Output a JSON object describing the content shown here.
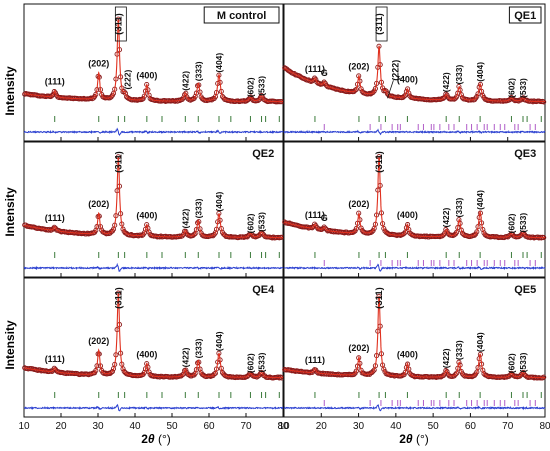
{
  "figure": {
    "ylabel": "Intensity",
    "xlabel_prefix": "2",
    "xlabel_theta": "θ",
    "xlabel_unit": " (°)"
  },
  "colors": {
    "observed": "#8b1a1a",
    "calculated": "#e0301e",
    "difference": "#2a3fd0",
    "bragg_spinel": "#3a7a3a",
    "bragg_second": "#b05cc8",
    "frame": "#111111"
  },
  "chart_data": [
    {
      "type": "line",
      "title": "M control",
      "xlim": [
        10,
        80
      ],
      "xticks": [
        10,
        20,
        30,
        40,
        50,
        60,
        70,
        80
      ],
      "tick_labels_shown": false,
      "labels_boxed": true,
      "series": [
        {
          "role": "observed",
          "marker": "circle"
        },
        {
          "role": "calculated",
          "line": "solid"
        },
        {
          "role": "difference",
          "line": "solid"
        }
      ],
      "background": 0.1,
      "peaks": [
        {
          "x": 18.3,
          "h": 0.08,
          "label": "(111)"
        },
        {
          "x": 30.2,
          "h": 0.33,
          "label": "(202)"
        },
        {
          "x": 35.5,
          "h": 1.0,
          "label": "(311)"
        },
        {
          "x": 37.2,
          "h": 0.06,
          "label": "(222)"
        },
        {
          "x": 43.2,
          "h": 0.2,
          "label": "(400)"
        },
        {
          "x": 53.6,
          "h": 0.1,
          "label": "(422)"
        },
        {
          "x": 57.1,
          "h": 0.22,
          "label": "(333)"
        },
        {
          "x": 62.7,
          "h": 0.33,
          "label": "(404)"
        },
        {
          "x": 71.2,
          "h": 0.05,
          "label": "(602)"
        },
        {
          "x": 74.2,
          "h": 0.07,
          "label": "(533)"
        }
      ],
      "bragg_rows": [
        {
          "role": "bragg_spinel",
          "x": [
            18.3,
            30.2,
            35.5,
            37.2,
            43.2,
            47.3,
            53.6,
            57.1,
            62.7,
            65.9,
            71.2,
            74.2,
            75.3,
            79.0
          ]
        }
      ]
    },
    {
      "type": "line",
      "title": "QE1",
      "xlim": [
        10,
        80
      ],
      "xticks": [
        10,
        20,
        30,
        40,
        50,
        60,
        70,
        80
      ],
      "tick_labels_shown": false,
      "labels_boxed": true,
      "series": [
        {
          "role": "observed",
          "marker": "circle"
        },
        {
          "role": "calculated",
          "line": "solid"
        },
        {
          "role": "difference",
          "line": "solid"
        }
      ],
      "background": 0.42,
      "peaks": [
        {
          "x": 18.3,
          "h": 0.06,
          "label": "(111)"
        },
        {
          "x": 20.8,
          "h": 0.05,
          "label": "G"
        },
        {
          "x": 30.1,
          "h": 0.22,
          "label": "(202)"
        },
        {
          "x": 35.5,
          "h": 0.62,
          "label": "(311)"
        },
        {
          "x": 37.2,
          "h": 0.05,
          "label": "(222)",
          "arrow": true
        },
        {
          "x": 43.1,
          "h": 0.12,
          "label": "(400)"
        },
        {
          "x": 53.5,
          "h": 0.07,
          "label": "(422)"
        },
        {
          "x": 57.0,
          "h": 0.17,
          "label": "(333)"
        },
        {
          "x": 62.6,
          "h": 0.21,
          "label": "(404)"
        },
        {
          "x": 71.0,
          "h": 0.04,
          "label": "(602)"
        },
        {
          "x": 74.1,
          "h": 0.04,
          "label": "(533)"
        }
      ],
      "bragg_rows": [
        {
          "role": "bragg_spinel",
          "x": [
            18.3,
            30.1,
            35.5,
            37.2,
            43.1,
            53.5,
            57.0,
            62.6,
            71.0,
            74.1,
            75.2,
            79.0
          ]
        },
        {
          "role": "bragg_second",
          "x": [
            20.8,
            33.1,
            36.0,
            39.0,
            40.5,
            41.2,
            46.0,
            47.4,
            49.5,
            50.2,
            51.8,
            54.2,
            55.6,
            59.0,
            60.3,
            61.8,
            63.7,
            64.5,
            66.4,
            68.0,
            69.2,
            71.9,
            72.8,
            76.0,
            77.4
          ]
        }
      ]
    },
    {
      "type": "line",
      "title": "QE2",
      "xlim": [
        10,
        80
      ],
      "xticks": [
        10,
        20,
        30,
        40,
        50,
        60,
        70,
        80
      ],
      "tick_labels_shown": false,
      "labels_boxed": false,
      "series": [
        {
          "role": "observed",
          "marker": "circle"
        },
        {
          "role": "calculated",
          "line": "solid"
        },
        {
          "role": "difference",
          "line": "solid"
        }
      ],
      "background": 0.16,
      "peaks": [
        {
          "x": 18.3,
          "h": 0.05,
          "label": "(111)"
        },
        {
          "x": 30.2,
          "h": 0.27,
          "label": "(202)"
        },
        {
          "x": 35.5,
          "h": 1.0,
          "label": "(311)"
        },
        {
          "x": 43.2,
          "h": 0.15,
          "label": "(400)"
        },
        {
          "x": 53.6,
          "h": 0.08,
          "label": "(422)"
        },
        {
          "x": 57.1,
          "h": 0.21,
          "label": "(333)"
        },
        {
          "x": 62.7,
          "h": 0.3,
          "label": "(404)"
        },
        {
          "x": 71.2,
          "h": 0.05,
          "label": "(602)"
        },
        {
          "x": 74.2,
          "h": 0.07,
          "label": "(533)"
        }
      ],
      "bragg_rows": [
        {
          "role": "bragg_spinel",
          "x": [
            18.3,
            30.2,
            35.5,
            37.2,
            43.2,
            47.3,
            53.6,
            57.1,
            62.7,
            65.9,
            71.2,
            74.2,
            75.3,
            79.0
          ]
        }
      ]
    },
    {
      "type": "line",
      "title": "QE3",
      "xlim": [
        10,
        80
      ],
      "xticks": [
        10,
        20,
        30,
        40,
        50,
        60,
        70,
        80
      ],
      "tick_labels_shown": false,
      "labels_boxed": false,
      "series": [
        {
          "role": "observed",
          "marker": "circle"
        },
        {
          "role": "calculated",
          "line": "solid"
        },
        {
          "role": "difference",
          "line": "solid"
        }
      ],
      "background": 0.2,
      "peaks": [
        {
          "x": 18.3,
          "h": 0.06,
          "label": "(111)"
        },
        {
          "x": 20.8,
          "h": 0.04,
          "label": "G"
        },
        {
          "x": 30.1,
          "h": 0.26,
          "label": "(202)"
        },
        {
          "x": 35.5,
          "h": 1.0,
          "label": "(311)"
        },
        {
          "x": 43.1,
          "h": 0.15,
          "label": "(400)"
        },
        {
          "x": 53.5,
          "h": 0.09,
          "label": "(422)"
        },
        {
          "x": 57.0,
          "h": 0.22,
          "label": "(333)"
        },
        {
          "x": 62.6,
          "h": 0.32,
          "label": "(404)"
        },
        {
          "x": 71.0,
          "h": 0.05,
          "label": "(602)"
        },
        {
          "x": 74.1,
          "h": 0.06,
          "label": "(533)"
        }
      ],
      "bragg_rows": [
        {
          "role": "bragg_spinel",
          "x": [
            18.3,
            30.1,
            35.5,
            37.2,
            43.1,
            53.5,
            57.0,
            62.6,
            71.0,
            74.1,
            75.2,
            79.0
          ]
        },
        {
          "role": "bragg_second",
          "x": [
            20.8,
            33.1,
            36.0,
            39.0,
            40.5,
            41.2,
            46.0,
            47.4,
            49.5,
            50.2,
            51.8,
            54.2,
            55.6,
            59.0,
            60.3,
            61.8,
            63.7,
            64.5,
            66.4,
            68.0,
            69.2,
            71.9,
            72.8,
            76.0,
            77.4
          ]
        }
      ]
    },
    {
      "type": "line",
      "title": "QE4",
      "xlim": [
        10,
        80
      ],
      "xticks": [
        10,
        20,
        30,
        40,
        50,
        60,
        70,
        80
      ],
      "tick_labels": [
        "10",
        "20",
        "30",
        "40",
        "50",
        "60",
        "70",
        "80"
      ],
      "tick_labels_shown": true,
      "labels_boxed": false,
      "series": [
        {
          "role": "observed",
          "marker": "circle"
        },
        {
          "role": "calculated",
          "line": "solid"
        },
        {
          "role": "difference",
          "line": "solid"
        }
      ],
      "background": 0.12,
      "peaks": [
        {
          "x": 18.3,
          "h": 0.05,
          "label": "(111)"
        },
        {
          "x": 30.2,
          "h": 0.3,
          "label": "(202)"
        },
        {
          "x": 35.5,
          "h": 1.0,
          "label": "(311)"
        },
        {
          "x": 43.2,
          "h": 0.16,
          "label": "(400)"
        },
        {
          "x": 53.6,
          "h": 0.09,
          "label": "(422)"
        },
        {
          "x": 57.1,
          "h": 0.2,
          "label": "(333)"
        },
        {
          "x": 62.7,
          "h": 0.29,
          "label": "(404)"
        },
        {
          "x": 71.2,
          "h": 0.05,
          "label": "(602)"
        },
        {
          "x": 74.2,
          "h": 0.06,
          "label": "(533)"
        }
      ],
      "bragg_rows": [
        {
          "role": "bragg_spinel",
          "x": [
            18.3,
            30.2,
            35.5,
            37.2,
            43.2,
            47.3,
            53.6,
            57.1,
            62.7,
            65.9,
            71.2,
            74.2,
            75.3,
            79.0
          ]
        }
      ]
    },
    {
      "type": "line",
      "title": "QE5",
      "xlim": [
        10,
        80
      ],
      "xticks": [
        10,
        20,
        30,
        40,
        50,
        60,
        70,
        80
      ],
      "tick_labels": [
        "10",
        "20",
        "30",
        "40",
        "50",
        "60",
        "70",
        "80"
      ],
      "tick_labels_shown": true,
      "labels_boxed": false,
      "series": [
        {
          "role": "observed",
          "marker": "circle"
        },
        {
          "role": "calculated",
          "line": "solid"
        },
        {
          "role": "difference",
          "line": "solid"
        }
      ],
      "background": 0.1,
      "peaks": [
        {
          "x": 18.3,
          "h": 0.05,
          "label": "(111)"
        },
        {
          "x": 30.1,
          "h": 0.22,
          "label": "(202)"
        },
        {
          "x": 35.5,
          "h": 0.97,
          "label": "(311)"
        },
        {
          "x": 43.1,
          "h": 0.16,
          "label": "(400)"
        },
        {
          "x": 53.5,
          "h": 0.08,
          "label": "(422)"
        },
        {
          "x": 57.0,
          "h": 0.18,
          "label": "(333)"
        },
        {
          "x": 62.6,
          "h": 0.28,
          "label": "(404)"
        },
        {
          "x": 71.0,
          "h": 0.05,
          "label": "(602)"
        },
        {
          "x": 74.1,
          "h": 0.06,
          "label": "(533)"
        }
      ],
      "bragg_rows": [
        {
          "role": "bragg_spinel",
          "x": [
            18.3,
            30.1,
            35.5,
            37.2,
            43.1,
            53.5,
            57.0,
            62.6,
            71.0,
            74.1,
            75.2,
            79.0
          ]
        },
        {
          "role": "bragg_second",
          "x": [
            20.8,
            33.1,
            36.0,
            39.0,
            40.5,
            41.2,
            46.0,
            47.4,
            49.5,
            50.2,
            51.8,
            54.2,
            55.6,
            59.0,
            60.3,
            61.8,
            63.7,
            64.5,
            66.4,
            68.0,
            69.2,
            71.9,
            72.8,
            76.0,
            77.4
          ]
        }
      ]
    }
  ]
}
